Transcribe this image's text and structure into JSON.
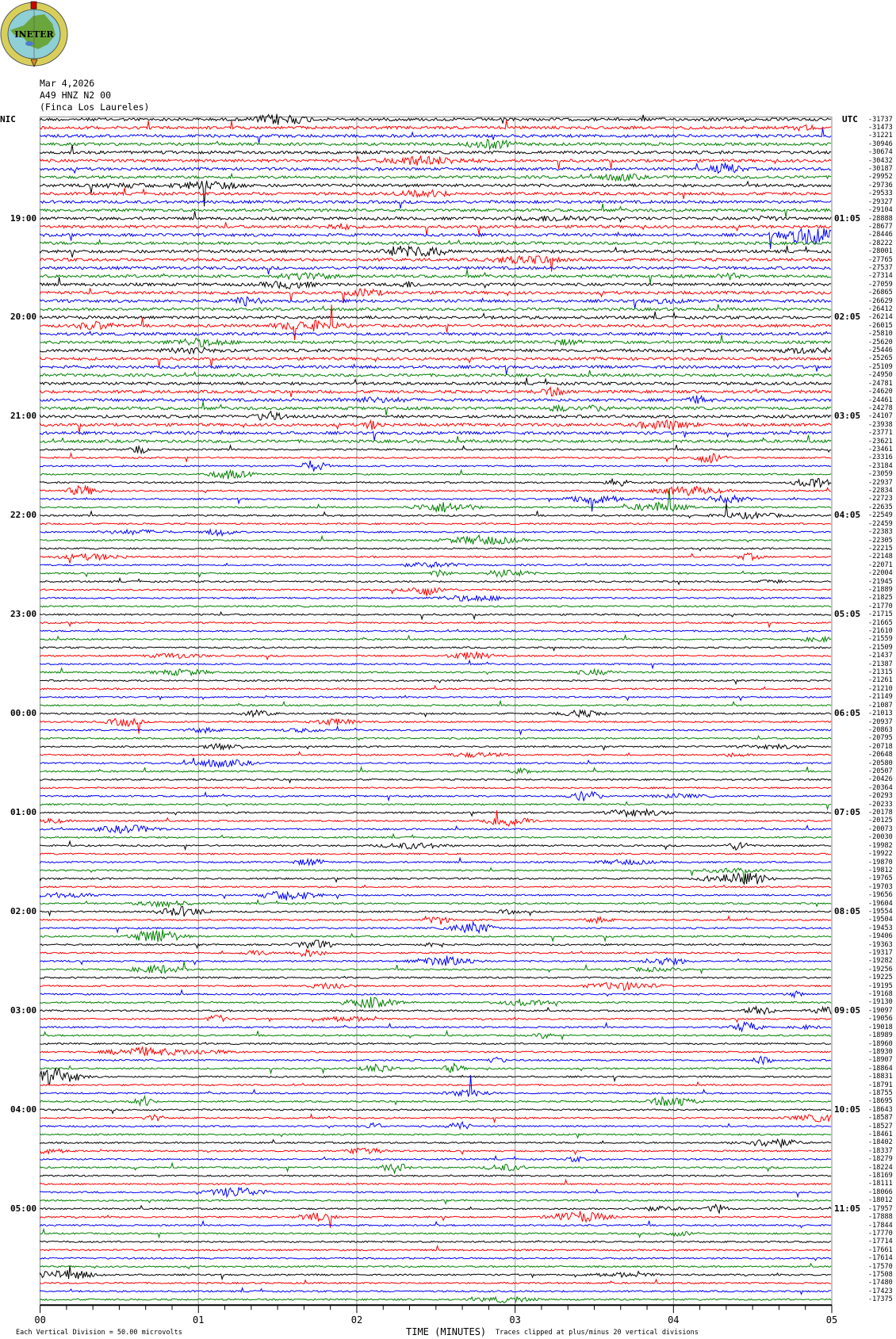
{
  "logo": {
    "text": "INETER"
  },
  "header": {
    "date": "Mar 4,2026",
    "channel": "A49 HNZ N2 00",
    "site": "(Finca Los Laureles)"
  },
  "left_timezone": "NIC",
  "right_timezone": "UTC",
  "footer": {
    "scale": "Each Vertical Division =    50.00 microvolts",
    "xlabel": "TIME (MINUTES)",
    "clip_note": "Traces clipped at plus/minus 20 vertical divisions"
  },
  "chart_data": {
    "type": "line",
    "subtype": "helicorder",
    "xlabel": "TIME (MINUTES)",
    "xlim": [
      0,
      5
    ],
    "x_ticks": [
      "00",
      "01",
      "02",
      "03",
      "04",
      "05"
    ],
    "grid": "vertical lines at each minute",
    "trace_colors": [
      "#000000",
      "#ff0000",
      "#0000ff",
      "#008000"
    ],
    "left_hour_labels": [
      "19:00",
      "20:00",
      "21:00",
      "22:00",
      "23:00",
      "00:00",
      "01:00",
      "02:00",
      "03:00",
      "04:00",
      "05:00"
    ],
    "right_hour_labels": [
      "01:05",
      "02:05",
      "03:05",
      "04:05",
      "05:05",
      "06:05",
      "07:05",
      "08:05",
      "09:05",
      "10:05",
      "11:05"
    ],
    "trace_offsets": [
      -31737,
      -31473,
      -31221,
      -30946,
      -30674,
      -30432,
      -30187,
      -29952,
      -29736,
      -29533,
      -29327,
      -29104,
      -28888,
      -28677,
      -28446,
      -28222,
      -28001,
      -27765,
      -27537,
      -27314,
      -27059,
      -26865,
      -26629,
      -26412,
      -26214,
      -26015,
      -25810,
      -25620,
      -25446,
      -25265,
      -25109,
      -24950,
      -24781,
      -24620,
      -24461,
      -24278,
      -24107,
      -23938,
      -23771,
      -23621,
      -23461,
      -23316,
      -23184,
      -23059,
      -22937,
      -22834,
      -22723,
      -22635,
      -22549,
      -22459,
      -22383,
      -22305,
      -22215,
      -22148,
      -22071,
      -22004,
      -21945,
      -21889,
      -21825,
      -21770,
      -21715,
      -21665,
      -21610,
      -21559,
      -21509,
      -21437,
      -21387,
      -21315,
      -21261,
      -21210,
      -21149,
      -21087,
      -21013,
      -20937,
      -20863,
      -20795,
      -20718,
      -20648,
      -20580,
      -20507,
      -20426,
      -20364,
      -20293,
      -20233,
      -20178,
      -20125,
      -20073,
      -20030,
      -19982,
      -19922,
      -19870,
      -19812,
      -19765,
      -19703,
      -19656,
      -19604,
      -19554,
      -19504,
      -19453,
      -19406,
      -19363,
      -19317,
      -19282,
      -19256,
      -19225,
      -19195,
      -19168,
      -19130,
      -19097,
      -19056,
      -19018,
      -18989,
      -18960,
      -18930,
      -18907,
      -18864,
      -18831,
      -18791,
      -18755,
      -18695,
      -18643,
      -18587,
      -18527,
      -18461,
      -18402,
      -18337,
      -18279,
      -18224,
      -18169,
      -18111,
      -18066,
      -18012,
      -17957,
      -17888,
      -17844,
      -17770,
      -17714,
      -17661,
      -17614,
      -17570,
      -17508,
      -17480,
      -17423,
      -17375
    ]
  }
}
